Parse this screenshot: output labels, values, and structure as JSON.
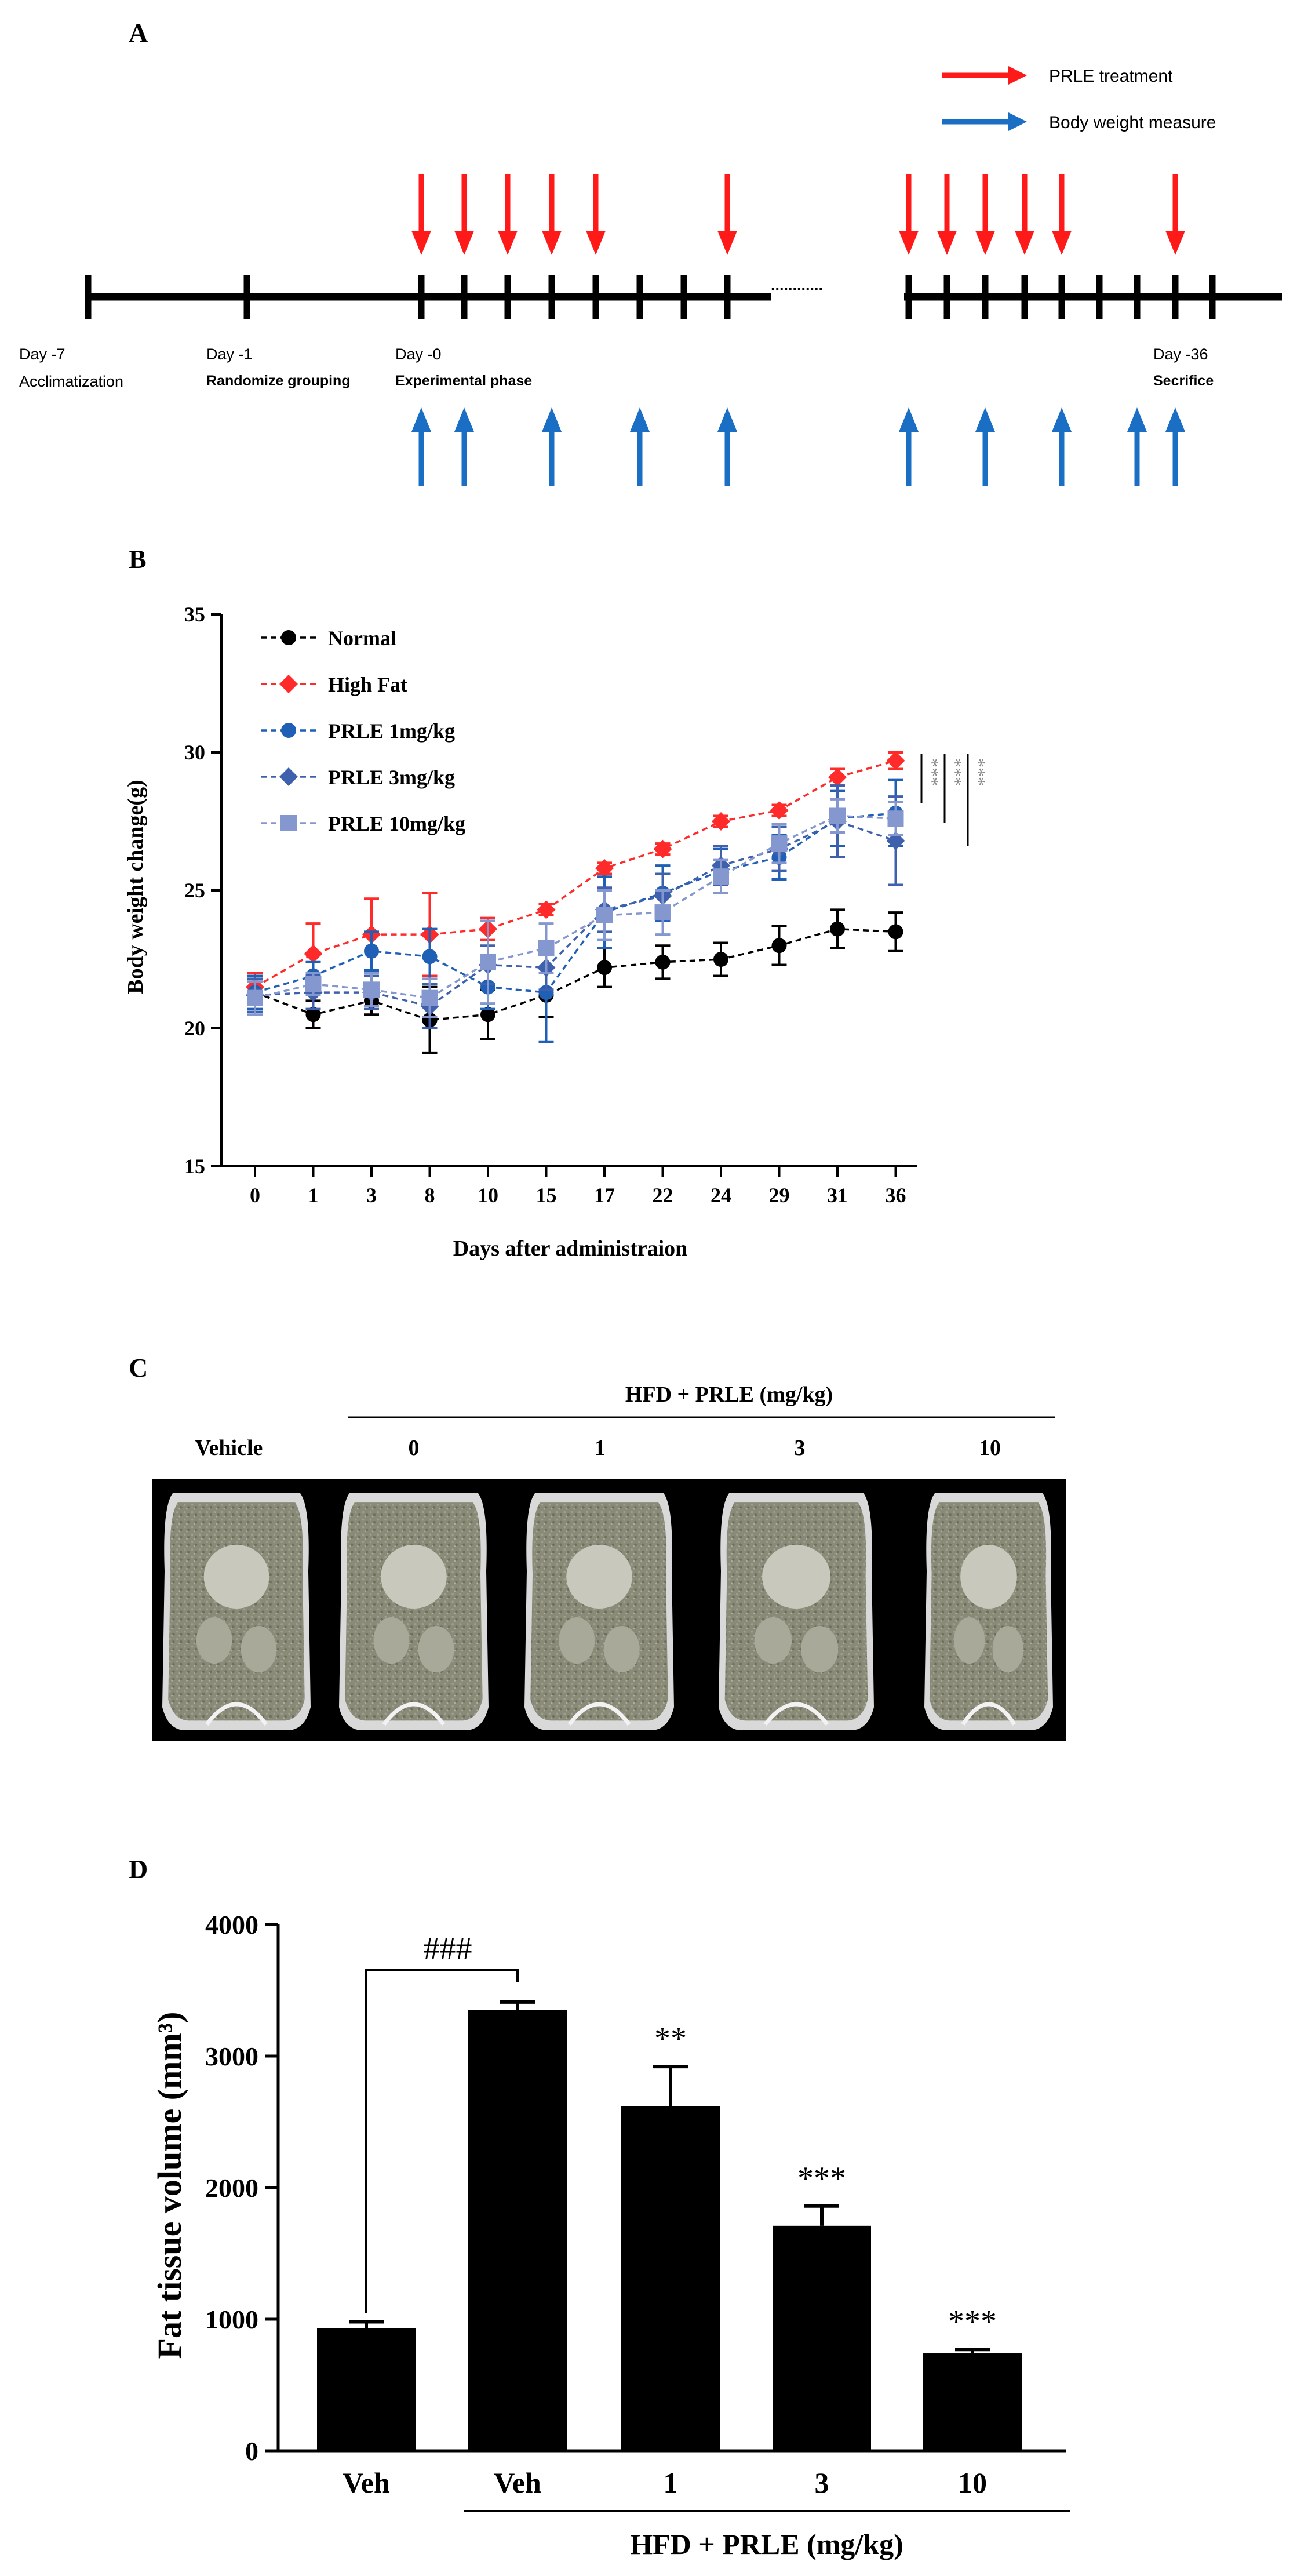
{
  "panels": {
    "A": "A",
    "B": "B",
    "C": "C",
    "D": "D"
  },
  "timeline": {
    "legend": [
      {
        "label": "PRLE treatment",
        "color": "#ff1a1a"
      },
      {
        "label": "Body weight measure",
        "color": "#1a6fc4"
      }
    ],
    "points": [
      {
        "day_label": "Day -7",
        "desc": "Acclimatization"
      },
      {
        "day_label": "Day -1",
        "desc": "Randomize grouping"
      },
      {
        "day_label": "Day -0",
        "desc": "Experimental phase"
      },
      {
        "day_label": "Day -36",
        "desc": "Secrifice"
      }
    ],
    "ellipsis": "............",
    "treatment_arrow_count": 12,
    "measure_arrow_count": 10
  },
  "chart_data": [
    {
      "type": "line",
      "panel": "B",
      "title": "",
      "xlabel": "Days after administraion",
      "ylabel": "Body weight change(g)",
      "categories": [
        "0",
        "1",
        "3",
        "8",
        "10",
        "15",
        "17",
        "22",
        "24",
        "29",
        "31",
        "36"
      ],
      "ylim": [
        15,
        35
      ],
      "yticks": [
        15,
        20,
        25,
        30,
        35
      ],
      "series": [
        {
          "name": "Normal",
          "color": "#000000",
          "marker": "circle",
          "values": [
            21.3,
            20.5,
            21.0,
            20.3,
            20.5,
            21.2,
            22.2,
            22.4,
            22.5,
            23.0,
            23.6,
            23.5
          ],
          "errors": [
            0.7,
            0.5,
            0.5,
            1.2,
            0.9,
            0.8,
            0.7,
            0.6,
            0.6,
            0.7,
            0.7,
            0.7
          ]
        },
        {
          "name": "High Fat",
          "color": "#ff2a2a",
          "marker": "diamond",
          "values": [
            21.5,
            22.7,
            23.4,
            23.4,
            23.6,
            24.3,
            25.8,
            26.5,
            27.5,
            27.9,
            29.1,
            29.7
          ],
          "errors": [
            0.5,
            1.1,
            1.3,
            1.5,
            0.4,
            0.2,
            0.2,
            0.2,
            0.2,
            0.2,
            0.3,
            0.3
          ]
        },
        {
          "name": "PRLE 1mg/kg",
          "color": "#1f5fb5",
          "marker": "circle",
          "values": [
            21.3,
            21.9,
            22.8,
            22.6,
            21.5,
            21.3,
            24.2,
            24.9,
            25.7,
            26.2,
            27.6,
            27.8
          ],
          "errors": [
            0.6,
            0.5,
            0.7,
            1.0,
            0.8,
            1.8,
            1.3,
            1.0,
            0.8,
            0.8,
            1.0,
            1.2
          ]
        },
        {
          "name": "PRLE 3mg/kg",
          "color": "#3f60ad",
          "marker": "diamond",
          "values": [
            21.2,
            21.3,
            21.3,
            20.8,
            22.3,
            22.2,
            24.3,
            24.8,
            25.9,
            26.5,
            27.5,
            26.8
          ],
          "errors": [
            0.6,
            0.6,
            0.6,
            0.8,
            0.7,
            0.8,
            0.8,
            0.8,
            0.7,
            0.8,
            1.3,
            1.6
          ]
        },
        {
          "name": "PRLE 10mg/kg",
          "color": "#8497cf",
          "marker": "square",
          "values": [
            21.1,
            21.6,
            21.4,
            21.1,
            22.4,
            22.9,
            24.1,
            24.2,
            25.5,
            26.7,
            27.7,
            27.6
          ],
          "errors": [
            0.6,
            0.4,
            0.6,
            0.7,
            1.5,
            0.9,
            0.9,
            0.8,
            0.6,
            0.7,
            0.6,
            0.6
          ]
        }
      ],
      "significance": [
        "***",
        "***",
        "***"
      ],
      "legend_position": "top-left"
    },
    {
      "type": "bar",
      "panel": "D",
      "title": "",
      "xlabel": "HFD + PRLE (mg/kg)",
      "ylabel": "Fat tissue volume (mm³)",
      "categories": [
        "Veh",
        "Veh",
        "1",
        "3",
        "10"
      ],
      "values": [
        930,
        3350,
        2620,
        1710,
        740
      ],
      "errors": [
        50,
        60,
        300,
        150,
        30
      ],
      "annotations": [
        "",
        "",
        "**",
        "***",
        "***"
      ],
      "bracket_label": "###",
      "ylim": [
        0,
        4000
      ],
      "yticks": [
        0,
        1000,
        2000,
        3000,
        4000
      ],
      "color": "#000000"
    }
  ],
  "panel_c": {
    "group_label": "HFD + PRLE (mg/kg)",
    "labels": [
      "Vehicle",
      "0",
      "1",
      "3",
      "10"
    ]
  }
}
